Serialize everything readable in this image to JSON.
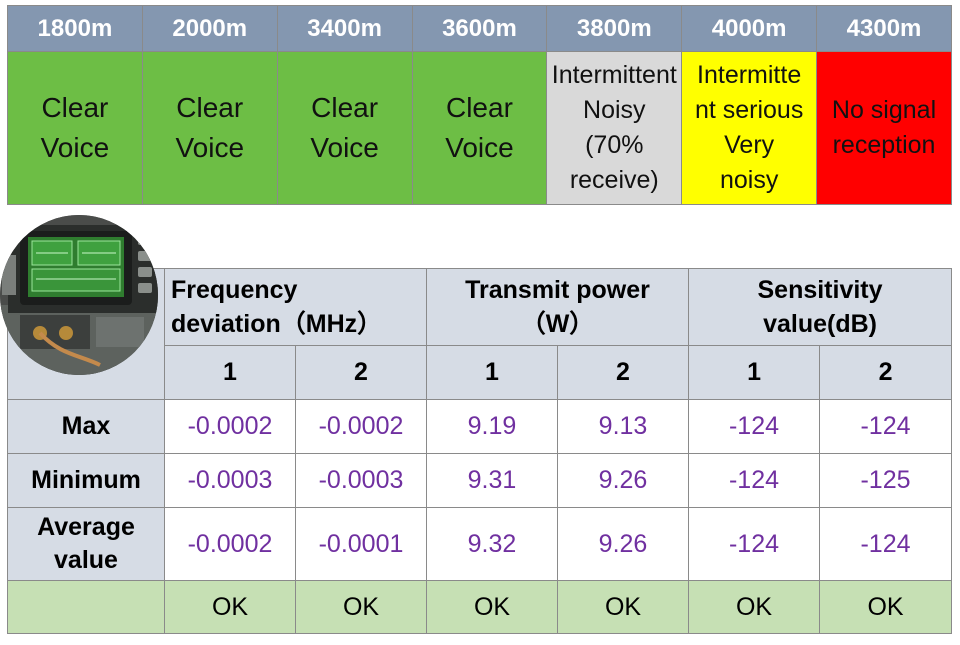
{
  "range_test": {
    "distances": [
      "1800m",
      "2000m",
      "3400m",
      "3600m",
      "3800m",
      "4000m",
      "4300m"
    ],
    "results": [
      {
        "lines": [
          "Clear",
          "Voice"
        ],
        "color": "#6dbe45"
      },
      {
        "lines": [
          "Clear",
          "Voice"
        ],
        "color": "#6dbe45"
      },
      {
        "lines": [
          "Clear",
          "Voice"
        ],
        "color": "#6dbe45"
      },
      {
        "lines": [
          "Clear",
          "Voice"
        ],
        "color": "#6dbe45"
      },
      {
        "lines": [
          "Intermittent",
          "Noisy",
          "(70%",
          "receive)"
        ],
        "color": "#d9d9d9"
      },
      {
        "lines": [
          "Intermitte",
          "nt serious",
          "Very",
          "noisy"
        ],
        "color": "#ffff00"
      },
      {
        "lines": [
          "No signal",
          "reception"
        ],
        "color": "#ff0000"
      }
    ]
  },
  "measurements": {
    "groups": [
      {
        "lines": [
          "Frequency",
          "deviation（MHz）"
        ]
      },
      {
        "lines": [
          "Transmit power",
          "（W）"
        ]
      },
      {
        "lines": [
          "Sensitivity",
          "value(dB)"
        ]
      }
    ],
    "subheaders": [
      "1",
      "2",
      "1",
      "2",
      "1",
      "2"
    ],
    "rows": [
      {
        "label_lines": [
          "Max"
        ],
        "values": [
          "-0.0002",
          "-0.0002",
          "9.19",
          "9.13",
          "-124",
          "-124"
        ]
      },
      {
        "label_lines": [
          "Minimum"
        ],
        "values": [
          "-0.0003",
          "-0.0003",
          "9.31",
          "9.26",
          "-124",
          "-125"
        ]
      },
      {
        "label_lines": [
          "Average",
          "value"
        ],
        "values": [
          "-0.0002",
          "-0.0001",
          "9.32",
          "9.26",
          "-124",
          "-124"
        ]
      }
    ],
    "status": [
      "OK",
      "OK",
      "OK",
      "OK",
      "OK",
      "OK"
    ]
  },
  "colors": {
    "header_blue": "#8497b0",
    "header_gray": "#d6dce5",
    "value_purple": "#7030a0",
    "ok_green": "#c6e0b4"
  },
  "icons": {
    "photo": "test-equipment-photo"
  }
}
